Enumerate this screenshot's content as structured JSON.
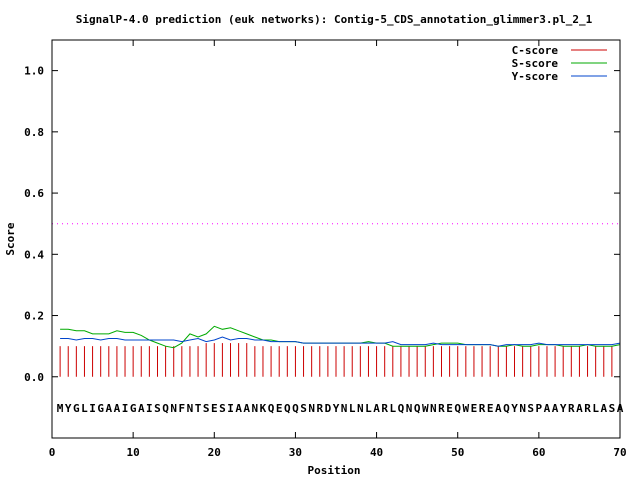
{
  "chart_data": {
    "type": "line",
    "title": "SignalP-4.0 prediction (euk networks): Contig-5_CDS_annotation_glimmer3.pl_2_1",
    "xlabel": "Position",
    "ylabel": "Score",
    "xlim": [
      0,
      70
    ],
    "ylim": [
      -0.2,
      1.1
    ],
    "x_ticks": [
      0,
      10,
      20,
      30,
      40,
      50,
      60,
      70
    ],
    "y_ticks": [
      0.0,
      0.2,
      0.4,
      0.6,
      0.8,
      1.0
    ],
    "x_tick_labels": [
      "0",
      "10",
      "20",
      "30",
      "40",
      "50",
      "60",
      "70"
    ],
    "y_tick_labels": [
      "0.0",
      "0.2",
      "0.4",
      "0.6",
      "0.8",
      "1.0"
    ],
    "threshold": {
      "value": 0.5,
      "color": "#ff00ff",
      "style": "dotted"
    },
    "legend_position": "top-right",
    "sequence": "MYGLIGAAIGAISQNFNTSESIAANKQEQQSNRDYNLNLARLQNQWNREQWEREAQYNSPAAYRARLASA",
    "series": [
      {
        "name": "C-score",
        "color": "#cc0000",
        "style": "impulse",
        "x": [
          1,
          2,
          3,
          4,
          5,
          6,
          7,
          8,
          9,
          10,
          11,
          12,
          13,
          14,
          15,
          16,
          17,
          18,
          19,
          20,
          21,
          22,
          23,
          24,
          25,
          26,
          27,
          28,
          29,
          30,
          31,
          32,
          33,
          34,
          35,
          36,
          37,
          38,
          39,
          40,
          41,
          42,
          43,
          44,
          45,
          46,
          47,
          48,
          49,
          50,
          51,
          52,
          53,
          54,
          55,
          56,
          57,
          58,
          59,
          60,
          61,
          62,
          63,
          64,
          65,
          66,
          67,
          68,
          69,
          70
        ],
        "values": [
          0.1,
          0.1,
          0.1,
          0.1,
          0.1,
          0.1,
          0.1,
          0.1,
          0.1,
          0.1,
          0.1,
          0.1,
          0.1,
          0.1,
          0.1,
          0.1,
          0.1,
          0.1,
          0.11,
          0.11,
          0.11,
          0.11,
          0.11,
          0.11,
          0.1,
          0.1,
          0.1,
          0.1,
          0.1,
          0.1,
          0.1,
          0.1,
          0.1,
          0.1,
          0.1,
          0.1,
          0.1,
          0.1,
          0.1,
          0.1,
          0.1,
          0.1,
          0.1,
          0.1,
          0.1,
          0.1,
          0.1,
          0.1,
          0.1,
          0.1,
          0.1,
          0.1,
          0.1,
          0.1,
          0.1,
          0.1,
          0.1,
          0.1,
          0.1,
          0.1,
          0.1,
          0.1,
          0.1,
          0.1,
          0.1,
          0.1,
          0.1,
          0.1,
          0.1,
          0.1
        ]
      },
      {
        "name": "S-score",
        "color": "#00aa00",
        "style": "line",
        "x": [
          1,
          2,
          3,
          4,
          5,
          6,
          7,
          8,
          9,
          10,
          11,
          12,
          13,
          14,
          15,
          16,
          17,
          18,
          19,
          20,
          21,
          22,
          23,
          24,
          25,
          26,
          27,
          28,
          29,
          30,
          31,
          32,
          33,
          34,
          35,
          36,
          37,
          38,
          39,
          40,
          41,
          42,
          43,
          44,
          45,
          46,
          47,
          48,
          49,
          50,
          51,
          52,
          53,
          54,
          55,
          56,
          57,
          58,
          59,
          60,
          61,
          62,
          63,
          64,
          65,
          66,
          67,
          68,
          69,
          70
        ],
        "values": [
          0.155,
          0.155,
          0.15,
          0.15,
          0.14,
          0.14,
          0.14,
          0.15,
          0.145,
          0.145,
          0.135,
          0.12,
          0.11,
          0.1,
          0.095,
          0.11,
          0.14,
          0.13,
          0.14,
          0.165,
          0.155,
          0.16,
          0.15,
          0.14,
          0.13,
          0.12,
          0.12,
          0.115,
          0.115,
          0.115,
          0.11,
          0.11,
          0.11,
          0.11,
          0.11,
          0.11,
          0.11,
          0.11,
          0.115,
          0.11,
          0.11,
          0.1,
          0.1,
          0.1,
          0.1,
          0.1,
          0.105,
          0.11,
          0.11,
          0.11,
          0.105,
          0.105,
          0.105,
          0.105,
          0.1,
          0.1,
          0.105,
          0.1,
          0.1,
          0.105,
          0.105,
          0.105,
          0.1,
          0.1,
          0.1,
          0.105,
          0.1,
          0.1,
          0.1,
          0.105
        ]
      },
      {
        "name": "Y-score",
        "color": "#0044cc",
        "style": "line",
        "x": [
          1,
          2,
          3,
          4,
          5,
          6,
          7,
          8,
          9,
          10,
          11,
          12,
          13,
          14,
          15,
          16,
          17,
          18,
          19,
          20,
          21,
          22,
          23,
          24,
          25,
          26,
          27,
          28,
          29,
          30,
          31,
          32,
          33,
          34,
          35,
          36,
          37,
          38,
          39,
          40,
          41,
          42,
          43,
          44,
          45,
          46,
          47,
          48,
          49,
          50,
          51,
          52,
          53,
          54,
          55,
          56,
          57,
          58,
          59,
          60,
          61,
          62,
          63,
          64,
          65,
          66,
          67,
          68,
          69,
          70
        ],
        "values": [
          0.125,
          0.125,
          0.12,
          0.125,
          0.125,
          0.12,
          0.125,
          0.125,
          0.12,
          0.12,
          0.12,
          0.12,
          0.12,
          0.12,
          0.12,
          0.115,
          0.12,
          0.125,
          0.115,
          0.12,
          0.13,
          0.12,
          0.125,
          0.125,
          0.12,
          0.12,
          0.115,
          0.115,
          0.115,
          0.115,
          0.11,
          0.11,
          0.11,
          0.11,
          0.11,
          0.11,
          0.11,
          0.11,
          0.11,
          0.11,
          0.11,
          0.115,
          0.105,
          0.105,
          0.105,
          0.105,
          0.11,
          0.105,
          0.105,
          0.105,
          0.105,
          0.105,
          0.105,
          0.105,
          0.1,
          0.105,
          0.105,
          0.105,
          0.105,
          0.11,
          0.105,
          0.105,
          0.105,
          0.105,
          0.105,
          0.105,
          0.105,
          0.105,
          0.105,
          0.11
        ]
      }
    ]
  }
}
